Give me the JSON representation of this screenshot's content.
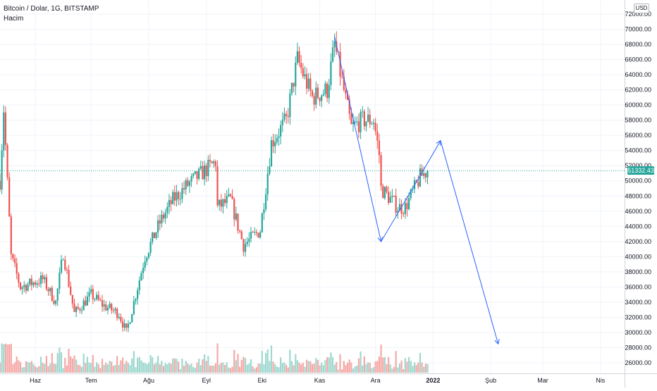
{
  "chart_data": {
    "type": "candlestick",
    "title": "Bitcoin / Dolar, 1G, BITSTAMP",
    "volume_label": "Hacim",
    "currency": "USD",
    "last_price": "51332.43",
    "ylim": [
      24000,
      72000
    ],
    "y_ticks": [
      "72000.00",
      "70000.00",
      "68000.00",
      "66000.00",
      "64000.00",
      "62000.00",
      "60000.00",
      "58000.00",
      "56000.00",
      "54000.00",
      "52000.00",
      "50000.00",
      "48000.00",
      "46000.00",
      "44000.00",
      "42000.00",
      "40000.00",
      "38000.00",
      "36000.00",
      "34000.00",
      "32000.00",
      "30000.00",
      "28000.00",
      "26000.00"
    ],
    "x_ticks": [
      "Haz",
      "Tem",
      "Ağu",
      "Eyl",
      "Eki",
      "Kas",
      "Ara",
      "2022",
      "Şub",
      "Mar",
      "Nis"
    ],
    "x_ticks_bold": [
      "2022"
    ],
    "x_range": [
      "2021-05-13",
      "2022-04-14"
    ],
    "x_tick_dates": [
      "2021-06-01",
      "2021-07-01",
      "2021-08-01",
      "2021-09-01",
      "2021-10-01",
      "2021-11-01",
      "2021-12-01",
      "2022-01-01",
      "2022-02-01",
      "2022-03-01",
      "2022-04-01"
    ],
    "anchors": [
      {
        "date": "2021-05-13",
        "price": 50000
      },
      {
        "date": "2021-05-15",
        "price": 59500
      },
      {
        "date": "2021-05-19",
        "price": 40000
      },
      {
        "date": "2021-05-24",
        "price": 36000
      },
      {
        "date": "2021-06-05",
        "price": 37000
      },
      {
        "date": "2021-06-12",
        "price": 34000
      },
      {
        "date": "2021-06-16",
        "price": 40500
      },
      {
        "date": "2021-06-22",
        "price": 32500
      },
      {
        "date": "2021-07-01",
        "price": 35000
      },
      {
        "date": "2021-07-08",
        "price": 33500
      },
      {
        "date": "2021-07-16",
        "price": 32500
      },
      {
        "date": "2021-07-20",
        "price": 30000
      },
      {
        "date": "2021-07-30",
        "price": 40000
      },
      {
        "date": "2021-08-07",
        "price": 44500
      },
      {
        "date": "2021-08-14",
        "price": 47500
      },
      {
        "date": "2021-08-22",
        "price": 49500
      },
      {
        "date": "2021-09-06",
        "price": 52500
      },
      {
        "date": "2021-09-07",
        "price": 46500
      },
      {
        "date": "2021-09-14",
        "price": 47500
      },
      {
        "date": "2021-09-21",
        "price": 41500
      },
      {
        "date": "2021-09-30",
        "price": 43500
      },
      {
        "date": "2021-10-06",
        "price": 55000
      },
      {
        "date": "2021-10-14",
        "price": 58000
      },
      {
        "date": "2021-10-20",
        "price": 66000
      },
      {
        "date": "2021-10-28",
        "price": 61000
      },
      {
        "date": "2021-11-05",
        "price": 62000
      },
      {
        "date": "2021-11-09",
        "price": 68000
      },
      {
        "date": "2021-11-18",
        "price": 57000
      },
      {
        "date": "2021-11-24",
        "price": 58000
      },
      {
        "date": "2021-11-30",
        "price": 58000
      },
      {
        "date": "2021-12-03",
        "price": 53500
      },
      {
        "date": "2021-12-04",
        "price": 49000
      },
      {
        "date": "2021-12-13",
        "price": 46500
      },
      {
        "date": "2021-12-17",
        "price": 46500
      },
      {
        "date": "2021-12-25",
        "price": 50500
      },
      {
        "date": "2021-12-29",
        "price": 51332
      }
    ],
    "drawing": [
      {
        "date": "2021-11-09",
        "price": 69000
      },
      {
        "date": "2021-12-04",
        "price": 42000
      },
      {
        "date": "2021-12-27",
        "price": 51500
      },
      {
        "date": "2022-01-05",
        "price": 55300
      },
      {
        "date": "2022-02-05",
        "price": 28500
      }
    ],
    "colors": {
      "up": "#26a69a",
      "down": "#ef5350",
      "up_volume": "#9fd8cf",
      "down_volume": "#f5a9a7",
      "drawing": "#2962ff",
      "grid": "#f0f3fa",
      "price_line": "#26a69a",
      "text": "#131722"
    }
  }
}
